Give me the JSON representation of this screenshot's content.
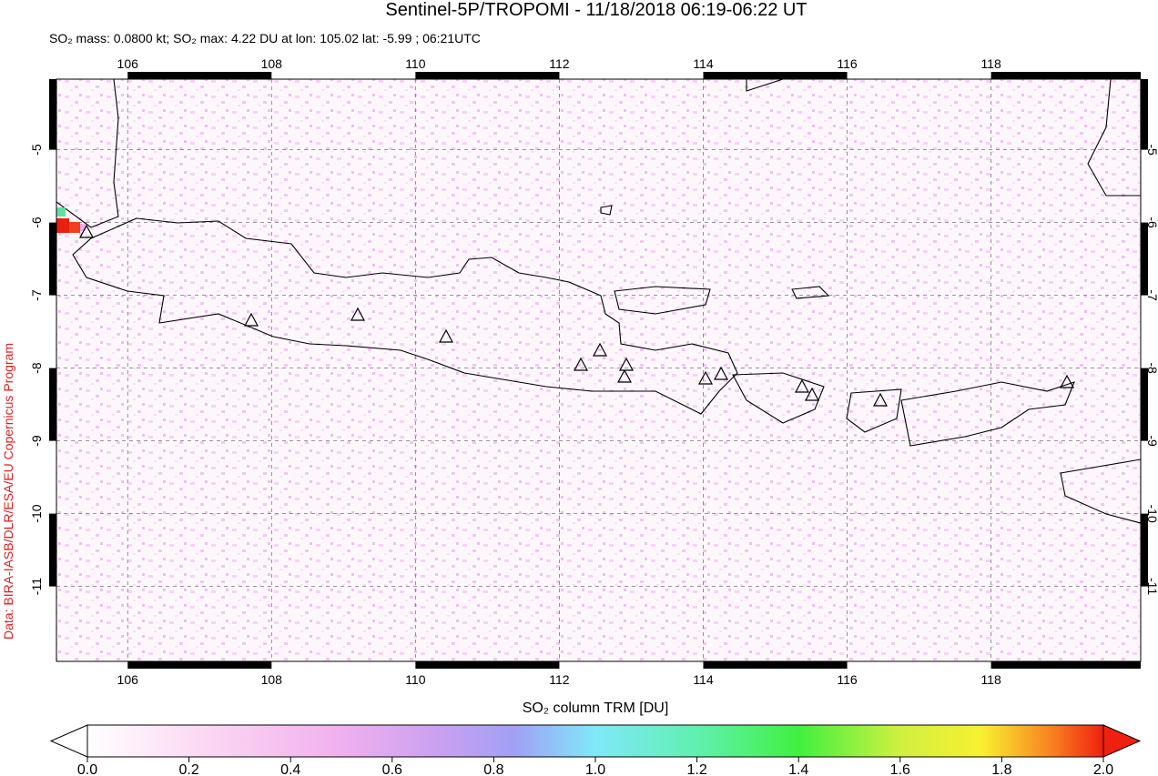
{
  "title": "Sentinel-5P/TROPOMI - 11/18/2018 06:19-06:22 UT",
  "subtitle": "SO₂ mass: 0.0800 kt; SO₂ max: 4.22 DU at lon: 105.02 lat: -5.99 ; 06:21UTC",
  "credit": "Data: BIRA-IASB/DLR/ESA/EU Copernicus Program",
  "map": {
    "xlim": [
      105.01,
      120.08
    ],
    "ylim": [
      -12.03,
      -4.03
    ],
    "xticks": [
      106,
      108,
      110,
      112,
      114,
      116,
      118
    ],
    "yticks": [
      -5,
      -6,
      -7,
      -8,
      -9,
      -10,
      -11
    ]
  },
  "colorbar": {
    "label": "SO₂ column TRM [DU]",
    "range": [
      0,
      2
    ],
    "ticks": [
      {
        "value": 0,
        "label": "0.0"
      },
      {
        "value": 0.2,
        "label": "0.2"
      },
      {
        "value": 0.4,
        "label": "0.4"
      },
      {
        "value": 0.6,
        "label": "0.6"
      },
      {
        "value": 0.8,
        "label": "0.8"
      },
      {
        "value": 1,
        "label": "1.0"
      },
      {
        "value": 1.2,
        "label": "1.2"
      },
      {
        "value": 1.4,
        "label": "1.4"
      },
      {
        "value": 1.6,
        "label": "1.6"
      },
      {
        "value": 1.8,
        "label": "1.8"
      },
      {
        "value": 2,
        "label": "2.0"
      }
    ]
  }
}
